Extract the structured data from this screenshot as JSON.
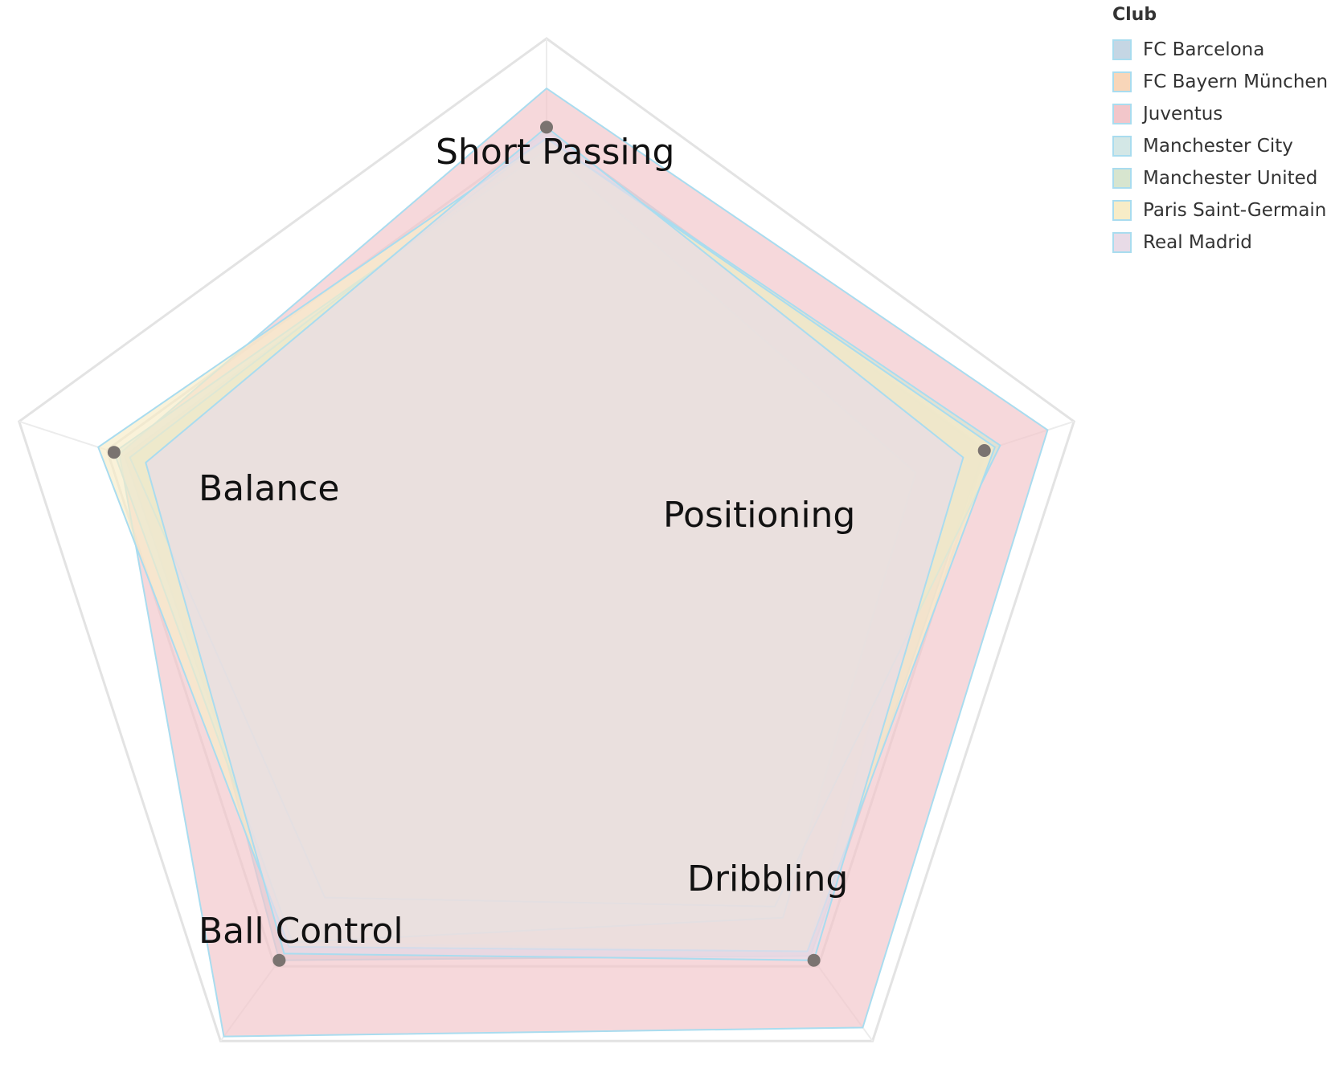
{
  "chart_data": {
    "type": "radar",
    "axes": [
      "Short Passing",
      "Positioning",
      "Dribbling",
      "Ball Control",
      "Balance"
    ],
    "legend_title": "Club",
    "legend_position": "top-right",
    "grid": true,
    "series": [
      {
        "name": "FC Barcelona",
        "color": "#c5d6e4",
        "values": [
          83.5,
          83.0,
          81.0,
          82.0,
          75.5
        ]
      },
      {
        "name": "FC Bayern München",
        "color": "#f8d6b9",
        "values": [
          81.0,
          75.0,
          80.0,
          78.0,
          80.0
        ]
      },
      {
        "name": "Juventus",
        "color": "#f2c6ca",
        "values": [
          91.0,
          95.0,
          97.0,
          99.0,
          81.0
        ]
      },
      {
        "name": "Manchester City",
        "color": "#d3e7e6",
        "values": [
          80.0,
          70.0,
          72.5,
          78.0,
          82.0
        ]
      },
      {
        "name": "Manchester United",
        "color": "#d7e5cf",
        "values": [
          82.0,
          86.0,
          70.0,
          68.0,
          79.0
        ]
      },
      {
        "name": "Paris Saint-Germain",
        "color": "#f7ecc7",
        "values": [
          82.0,
          85.0,
          80.0,
          79.0,
          85.0
        ]
      },
      {
        "name": "Real Madrid",
        "color": "#e8dbe7",
        "values": [
          84.0,
          79.0,
          82.0,
          80.5,
          76.0
        ]
      }
    ],
    "markers": [
      84,
      83,
      82,
      82,
      82
    ]
  }
}
